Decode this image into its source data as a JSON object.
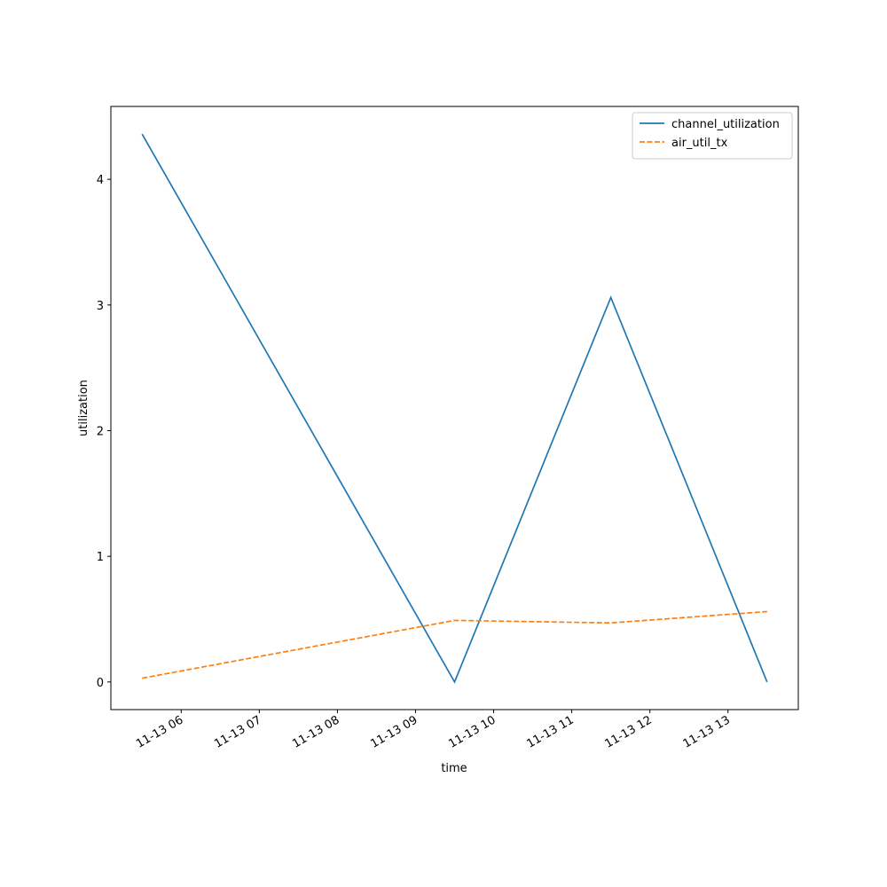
{
  "chart_data": {
    "type": "line",
    "x_label": "time",
    "y_label": "utilization",
    "x": [
      5.5,
      9.5,
      11.5,
      13.5
    ],
    "series": [
      {
        "name": "channel_utilization",
        "color": "#1f77b4",
        "dash": "solid",
        "values": [
          4.36,
          0,
          3.06,
          0
        ]
      },
      {
        "name": "air_util_tx",
        "color": "#ff7f0e",
        "dash": "dashed",
        "values": [
          0.03,
          0.49,
          0.47,
          0.56
        ]
      }
    ],
    "xlim": [
      5.1,
      13.9
    ],
    "xticks": [
      {
        "value": 6,
        "label": "11-13 06"
      },
      {
        "value": 7,
        "label": "11-13 07"
      },
      {
        "value": 8,
        "label": "11-13 08"
      },
      {
        "value": 9,
        "label": "11-13 09"
      },
      {
        "value": 10,
        "label": "11-13 10"
      },
      {
        "value": 11,
        "label": "11-13 11"
      },
      {
        "value": 12,
        "label": "11-13 12"
      },
      {
        "value": 13,
        "label": "11-13 13"
      }
    ],
    "ylim": [
      -0.22,
      4.58
    ],
    "yticks": [
      0,
      1,
      2,
      3,
      4
    ],
    "grid": false,
    "legend": "upper right"
  }
}
